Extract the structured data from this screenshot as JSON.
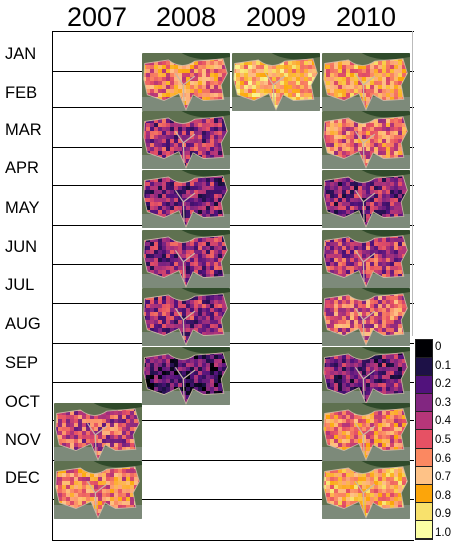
{
  "years": [
    "2007",
    "2008",
    "2009",
    "2010"
  ],
  "months": [
    "JAN",
    "FEB",
    "MAR",
    "APR",
    "MAY",
    "JUN",
    "JUL",
    "AUG",
    "SEP",
    "OCT",
    "NOV",
    "DEC"
  ],
  "panels": [
    {
      "year": "2007",
      "month": "NOV",
      "level": 0.45
    },
    {
      "year": "2007",
      "month": "DEC",
      "level": 0.6
    },
    {
      "year": "2008",
      "month": "FEB",
      "level": 0.62
    },
    {
      "year": "2008",
      "month": "MAR",
      "level": 0.35
    },
    {
      "year": "2008",
      "month": "MAY",
      "level": 0.3
    },
    {
      "year": "2008",
      "month": "JUN",
      "level": 0.33
    },
    {
      "year": "2008",
      "month": "AUG",
      "level": 0.34
    },
    {
      "year": "2008",
      "month": "SEP",
      "level": 0.2
    },
    {
      "year": "2009",
      "month": "FEB",
      "level": 0.75
    },
    {
      "year": "2010",
      "month": "FEB",
      "level": 0.68
    },
    {
      "year": "2010",
      "month": "MAR",
      "level": 0.55
    },
    {
      "year": "2010",
      "month": "MAY",
      "level": 0.3
    },
    {
      "year": "2010",
      "month": "JUN",
      "level": 0.4
    },
    {
      "year": "2010",
      "month": "AUG",
      "level": 0.5
    },
    {
      "year": "2010",
      "month": "SEP",
      "level": 0.28
    },
    {
      "year": "2010",
      "month": "NOV",
      "level": 0.6
    },
    {
      "year": "2010",
      "month": "DEC",
      "level": 0.7
    }
  ],
  "colorbar": {
    "labels": [
      "0",
      "0.1",
      "0.2",
      "0.3",
      "0.4",
      "0.5",
      "0.6",
      "0.7",
      "0.8",
      "0.9",
      "1.0"
    ],
    "colors": [
      "#000004",
      "#1d1147",
      "#51127c",
      "#822681",
      "#b63679",
      "#e65164",
      "#fb8861",
      "#fec287",
      "#fca50a",
      "#f8e16c",
      "#fcffa4"
    ]
  }
}
